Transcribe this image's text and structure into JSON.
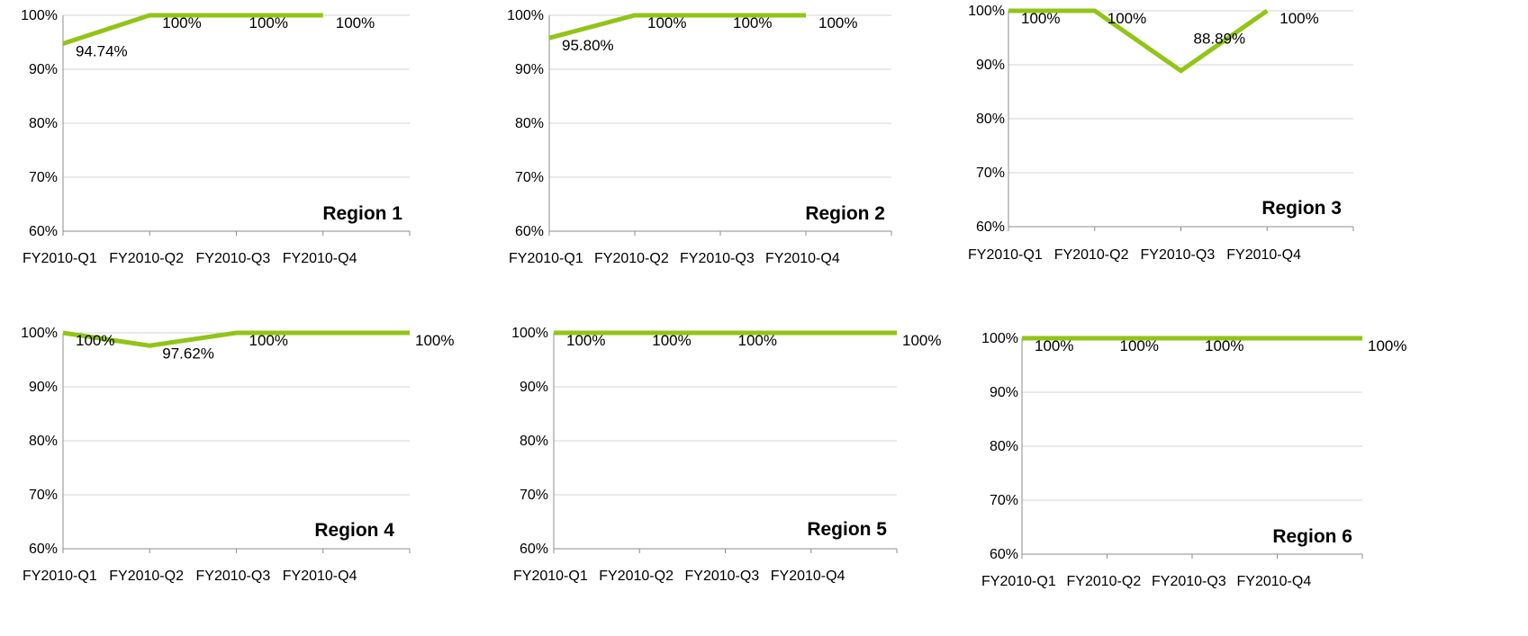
{
  "chart_data": [
    {
      "type": "line",
      "title": "Region 1",
      "categories": [
        "FY2010-Q1",
        "FY2010-Q2",
        "FY2010-Q3",
        "FY2010-Q4"
      ],
      "values": [
        94.74,
        100,
        100,
        100
      ],
      "data_labels": [
        "94.74%",
        "100%",
        "100%",
        "100%"
      ],
      "y_ticks": [
        "60%",
        "70%",
        "80%",
        "90%",
        "100%"
      ],
      "ylim": [
        60,
        100
      ],
      "grid": true,
      "line_color": "#92c418"
    },
    {
      "type": "line",
      "title": "Region 2",
      "categories": [
        "FY2010-Q1",
        "FY2010-Q2",
        "FY2010-Q3",
        "FY2010-Q4"
      ],
      "values": [
        95.8,
        100,
        100,
        100
      ],
      "data_labels": [
        "95.80%",
        "100%",
        "100%",
        "100%"
      ],
      "y_ticks": [
        "60%",
        "70%",
        "80%",
        "90%",
        "100%"
      ],
      "ylim": [
        60,
        100
      ],
      "grid": true,
      "line_color": "#92c418"
    },
    {
      "type": "line",
      "title": "Region 3",
      "categories": [
        "FY2010-Q1",
        "FY2010-Q2",
        "FY2010-Q3",
        "FY2010-Q4"
      ],
      "values": [
        100,
        100,
        88.89,
        100
      ],
      "data_labels": [
        "100%",
        "100%",
        "88.89%",
        "100%"
      ],
      "y_ticks": [
        "60%",
        "70%",
        "80%",
        "90%",
        "100%"
      ],
      "ylim": [
        60,
        100
      ],
      "grid": true,
      "line_color": "#92c418"
    },
    {
      "type": "line",
      "title": "Region 4",
      "categories": [
        "FY2010-Q1",
        "FY2010-Q2",
        "FY2010-Q3",
        "FY2010-Q4"
      ],
      "values": [
        100,
        97.62,
        100,
        100
      ],
      "data_labels": [
        "100%",
        "97.62%",
        "100%",
        "100%"
      ],
      "y_ticks": [
        "60%",
        "70%",
        "80%",
        "90%",
        "100%"
      ],
      "ylim": [
        60,
        100
      ],
      "grid": true,
      "line_color": "#92c418"
    },
    {
      "type": "line",
      "title": "Region 5",
      "categories": [
        "FY2010-Q1",
        "FY2010-Q2",
        "FY2010-Q3",
        "FY2010-Q4"
      ],
      "values": [
        100,
        100,
        100,
        100
      ],
      "data_labels": [
        "100%",
        "100%",
        "100%",
        "100%"
      ],
      "y_ticks": [
        "60%",
        "70%",
        "80%",
        "90%",
        "100%"
      ],
      "ylim": [
        60,
        100
      ],
      "grid": true,
      "line_color": "#92c418"
    },
    {
      "type": "line",
      "title": "Region 6",
      "categories": [
        "FY2010-Q1",
        "FY2010-Q2",
        "FY2010-Q3",
        "FY2010-Q4"
      ],
      "values": [
        100,
        100,
        100,
        100
      ],
      "data_labels": [
        "100%",
        "100%",
        "100%",
        "100%"
      ],
      "y_ticks": [
        "60%",
        "70%",
        "80%",
        "90%",
        "100%"
      ],
      "ylim": [
        60,
        100
      ],
      "grid": true,
      "line_color": "#92c418"
    }
  ]
}
